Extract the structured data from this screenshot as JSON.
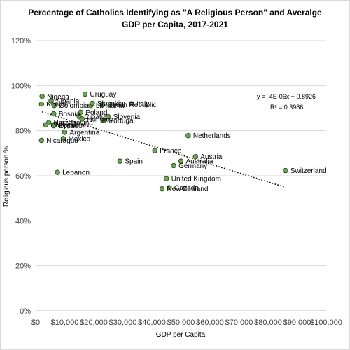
{
  "chart_data": {
    "type": "scatter",
    "title_line1": "Percentage of Catholics Identifying as \"A Religious Person\" and Averalge",
    "title_line2": "GDP per Capita, 2017-2021",
    "xlabel": "GDP per Capita",
    "ylabel": "Religious person %",
    "xlim": [
      0,
      100000
    ],
    "ylim": [
      0,
      1.2
    ],
    "x_ticks": [
      0,
      10000,
      20000,
      30000,
      40000,
      50000,
      60000,
      70000,
      80000,
      90000,
      100000
    ],
    "x_tick_labels": [
      "$0",
      "$10,000",
      "$20,000",
      "$30,000",
      "$40,000",
      "$50,000",
      "$60,000",
      "$70,000",
      "$80,000",
      "$90,000",
      "$100,000"
    ],
    "y_ticks": [
      0,
      0.2,
      0.4,
      0.6,
      0.8,
      1.0,
      1.2
    ],
    "y_tick_labels": [
      "0%",
      "20%",
      "40%",
      "60%",
      "80%",
      "100%",
      "120%"
    ],
    "grid": "horizontal",
    "marker_color": "#6aa84f",
    "marker_edge": "#1e3d14",
    "trendline": {
      "type": "linear",
      "slope": -4e-06,
      "intercept": 0.8926,
      "x_range": [
        2200,
        86000
      ]
    },
    "equation": "y = -4E-06x + 0.8926",
    "r_squared": "R² = 0.3986",
    "points": [
      {
        "label": "Nigeria",
        "x": 2200,
        "y": 0.952
      },
      {
        "label": "Albania",
        "x": 5300,
        "y": 0.933
      },
      {
        "label": "Kenya",
        "x": 2000,
        "y": 0.918
      },
      {
        "label": "Colombia",
        "x": 6400,
        "y": 0.912
      },
      {
        "label": "Lithuania",
        "x": 19000,
        "y": 0.912
      },
      {
        "label": "Czech Republic",
        "x": 23000,
        "y": 0.915
      },
      {
        "label": "Italy",
        "x": 33000,
        "y": 0.92
      },
      {
        "label": "Uruguay",
        "x": 17000,
        "y": 0.962
      },
      {
        "label": "Slovakia",
        "x": 19500,
        "y": 0.922
      },
      {
        "label": "Bosnia",
        "x": 6200,
        "y": 0.875
      },
      {
        "label": "Poland",
        "x": 15500,
        "y": 0.882
      },
      {
        "label": "Croatia",
        "x": 15000,
        "y": 0.862
      },
      {
        "label": "Slovenia",
        "x": 25000,
        "y": 0.862
      },
      {
        "label": "Hungary",
        "x": 16000,
        "y": 0.852
      },
      {
        "label": "Portugal",
        "x": 23500,
        "y": 0.845
      },
      {
        "label": "Herzegovina",
        "x": 4500,
        "y": 0.836
      },
      {
        "label": "Peru",
        "x": 6800,
        "y": 0.83
      },
      {
        "label": "Philippines",
        "x": 3500,
        "y": 0.826
      },
      {
        "label": "Ecuador",
        "x": 6200,
        "y": 0.822
      },
      {
        "label": "Argentina",
        "x": 10000,
        "y": 0.793
      },
      {
        "label": "Mexico",
        "x": 9500,
        "y": 0.765
      },
      {
        "label": "Nicaragua",
        "x": 2000,
        "y": 0.757
      },
      {
        "label": "Lebanon",
        "x": 7500,
        "y": 0.615
      },
      {
        "label": "Spain",
        "x": 29000,
        "y": 0.665
      },
      {
        "label": "France",
        "x": 41000,
        "y": 0.712
      },
      {
        "label": "Netherlands",
        "x": 52500,
        "y": 0.778
      },
      {
        "label": "Austria",
        "x": 55000,
        "y": 0.685
      },
      {
        "label": "Australia",
        "x": 50000,
        "y": 0.665
      },
      {
        "label": "Germany",
        "x": 47500,
        "y": 0.645
      },
      {
        "label": "United Kingdom",
        "x": 45000,
        "y": 0.587
      },
      {
        "label": "Canada",
        "x": 46000,
        "y": 0.547
      },
      {
        "label": "New Zealand",
        "x": 43500,
        "y": 0.542
      },
      {
        "label": "Switzerland",
        "x": 86000,
        "y": 0.623
      }
    ]
  }
}
